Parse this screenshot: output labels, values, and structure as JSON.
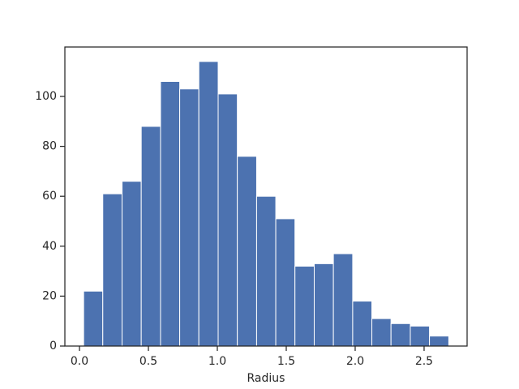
{
  "chart_data": {
    "type": "histogram",
    "xlabel": "Radius",
    "bins": [
      0.03,
      0.169,
      0.309,
      0.448,
      0.588,
      0.727,
      0.866,
      1.006,
      1.145,
      1.285,
      1.424,
      1.563,
      1.703,
      1.842,
      1.982,
      2.121,
      2.26,
      2.4,
      2.539,
      2.679
    ],
    "values": [
      22,
      61,
      66,
      88,
      106,
      103,
      114,
      101,
      76,
      60,
      51,
      32,
      33,
      37,
      18,
      11,
      9,
      8,
      4
    ],
    "color": "#4c72b0",
    "xlim": [
      -0.106,
      2.812
    ],
    "xticks": [
      {
        "value": 0,
        "label": "0.0"
      },
      0.5,
      {
        "value": 1,
        "label": "1.0"
      },
      1.5,
      {
        "value": 2,
        "label": "2.0"
      },
      2.5
    ],
    "ylim": [
      0,
      119.8
    ],
    "yticks": [
      0,
      20,
      40,
      60,
      80,
      100
    ],
    "grid": false
  }
}
